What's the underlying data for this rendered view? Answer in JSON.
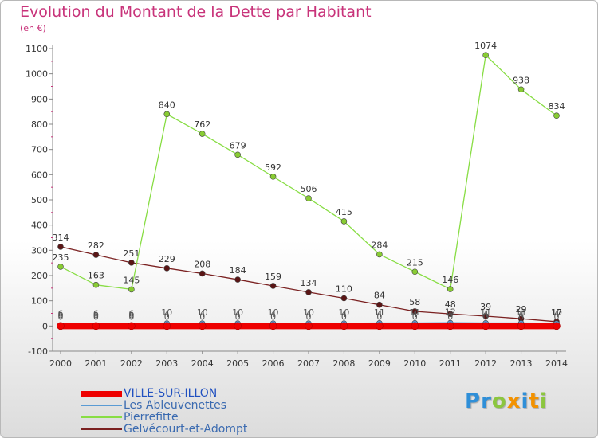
{
  "title": "Evolution du Montant de la Dette par Habitant",
  "unit_label": "(en €)",
  "logo": {
    "text": "Proxiti",
    "colors": [
      "#2f8fd8",
      "#2f8fd8",
      "#8cc63f",
      "#f39200",
      "#2f8fd8",
      "#f39200",
      "#8cc63f"
    ]
  },
  "chart_data": {
    "type": "line",
    "x": [
      2000,
      2001,
      2002,
      2003,
      2004,
      2005,
      2006,
      2007,
      2008,
      2009,
      2010,
      2011,
      2012,
      2013,
      2014
    ],
    "ylim": [
      -100,
      1100
    ],
    "yticks": [
      -100,
      0,
      100,
      200,
      300,
      400,
      500,
      600,
      700,
      800,
      900,
      1000,
      1100
    ],
    "grid": false,
    "legend_position": "bottom-left",
    "series": [
      {
        "name": "VILLE-SUR-ILLON",
        "color": "#ee0000",
        "values": [
          0,
          0,
          0,
          0,
          0,
          0,
          0,
          0,
          0,
          0,
          0,
          0,
          0,
          0,
          0
        ],
        "labels": [
          "0",
          "0",
          "0",
          "0",
          "0",
          "0",
          "0",
          "0",
          "0",
          "0",
          "0",
          "0",
          "0",
          "0",
          "0"
        ]
      },
      {
        "name": "Les Ableuvenettes",
        "color": "#5a9bd4",
        "values": [
          0,
          0,
          0,
          10,
          10,
          10,
          10,
          10,
          10,
          11,
          11,
          12,
          11,
          11,
          10
        ],
        "labels": [
          "0",
          "0",
          "0",
          "10",
          "10",
          "10",
          "10",
          "10",
          "10",
          "11",
          "11",
          "12",
          "11",
          "11",
          "10"
        ]
      },
      {
        "name": "Pierrefitte",
        "color": "#88dd44",
        "values": [
          235,
          163,
          145,
          840,
          762,
          679,
          592,
          506,
          415,
          284,
          215,
          146,
          1074,
          938,
          834
        ],
        "labels": [
          "235",
          "163",
          "145",
          "840",
          "762",
          "679",
          "592",
          "506",
          "415",
          "284",
          "215",
          "146",
          "1074",
          "938",
          "834"
        ]
      },
      {
        "name": "Gelvécourt-et-Adompt",
        "color": "#7a2020",
        "values": [
          314,
          282,
          251,
          229,
          208,
          184,
          159,
          134,
          110,
          84,
          58,
          48,
          39,
          29,
          17
        ],
        "labels": [
          "314",
          "282",
          "251",
          "229",
          "208",
          "184",
          "159",
          "134",
          "110",
          "84",
          "58",
          "48",
          "39",
          "29",
          "17"
        ]
      },
      {
        "name": "",
        "color": "#7a2020",
        "values": [
          6,
          6,
          6,
          4,
          4,
          4,
          4,
          4,
          4,
          4,
          4,
          4,
          4,
          4,
          4
        ],
        "labels": [
          "6",
          "6",
          "6",
          "4",
          "4",
          "4",
          "4",
          "4",
          "4",
          "4",
          "4",
          "4",
          "4",
          "4",
          "4"
        ]
      }
    ]
  }
}
